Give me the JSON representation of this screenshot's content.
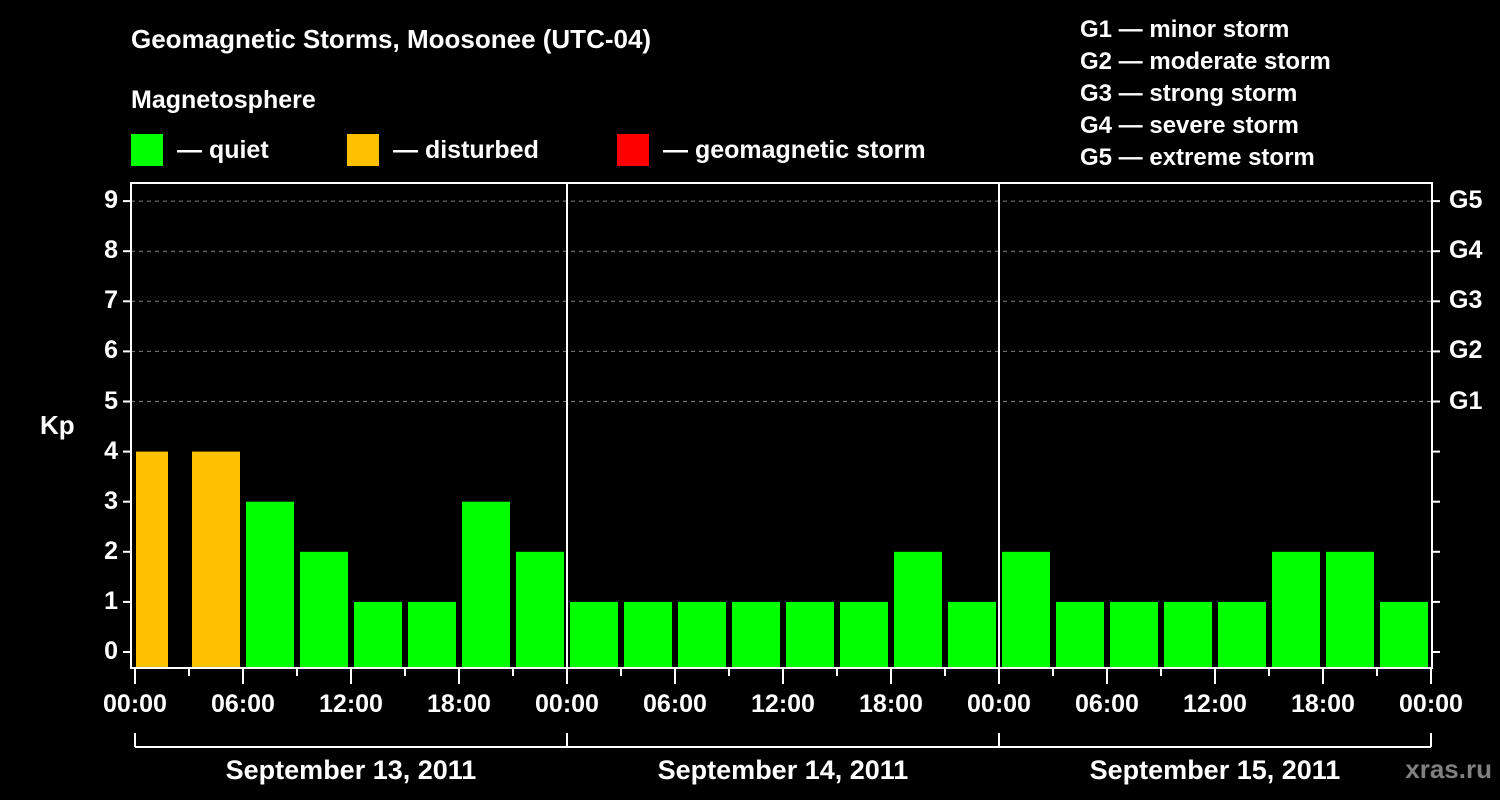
{
  "chart_data": {
    "type": "bar",
    "title": "Geomagnetic Storms, Moosonee (UTC-04)",
    "subtitle": "Magnetosphere",
    "ylabel": "Kp",
    "ylim": [
      0,
      9
    ],
    "yticks": [
      0,
      1,
      2,
      3,
      4,
      5,
      6,
      7,
      8,
      9
    ],
    "right_axis": {
      "5": "G1",
      "6": "G2",
      "7": "G3",
      "8": "G4",
      "9": "G5"
    },
    "grid": "dashed horizontal at 5-9",
    "xticks": [
      "00:00",
      "06:00",
      "12:00",
      "18:00",
      "00:00",
      "06:00",
      "12:00",
      "18:00",
      "00:00",
      "06:00",
      "12:00",
      "18:00",
      "00:00"
    ],
    "days": [
      "September 13, 2011",
      "September 14, 2011",
      "September 15, 2011"
    ],
    "bar_interval_hours": 3,
    "series": [
      {
        "name": "Kp",
        "values": [
          4,
          4,
          3,
          2,
          1,
          1,
          3,
          2,
          1,
          1,
          1,
          1,
          1,
          1,
          2,
          1,
          2,
          1,
          1,
          1,
          1,
          2,
          2,
          1
        ],
        "status": [
          "disturbed",
          "disturbed",
          "quiet",
          "quiet",
          "quiet",
          "quiet",
          "quiet",
          "quiet",
          "quiet",
          "quiet",
          "quiet",
          "quiet",
          "quiet",
          "quiet",
          "quiet",
          "quiet",
          "quiet",
          "quiet",
          "quiet",
          "quiet",
          "quiet",
          "quiet",
          "quiet",
          "quiet"
        ]
      }
    ],
    "legend": [
      {
        "label": "— quiet",
        "color": "#00ff00"
      },
      {
        "label": "— disturbed",
        "color": "#ffc000"
      },
      {
        "label": "— geomagnetic storm",
        "color": "#ff0000"
      }
    ],
    "storm_scale": [
      "G1 — minor storm",
      "G2 — moderate storm",
      "G3 — strong storm",
      "G4 — severe storm",
      "G5 — extreme storm"
    ]
  },
  "watermark": "xras.ru"
}
